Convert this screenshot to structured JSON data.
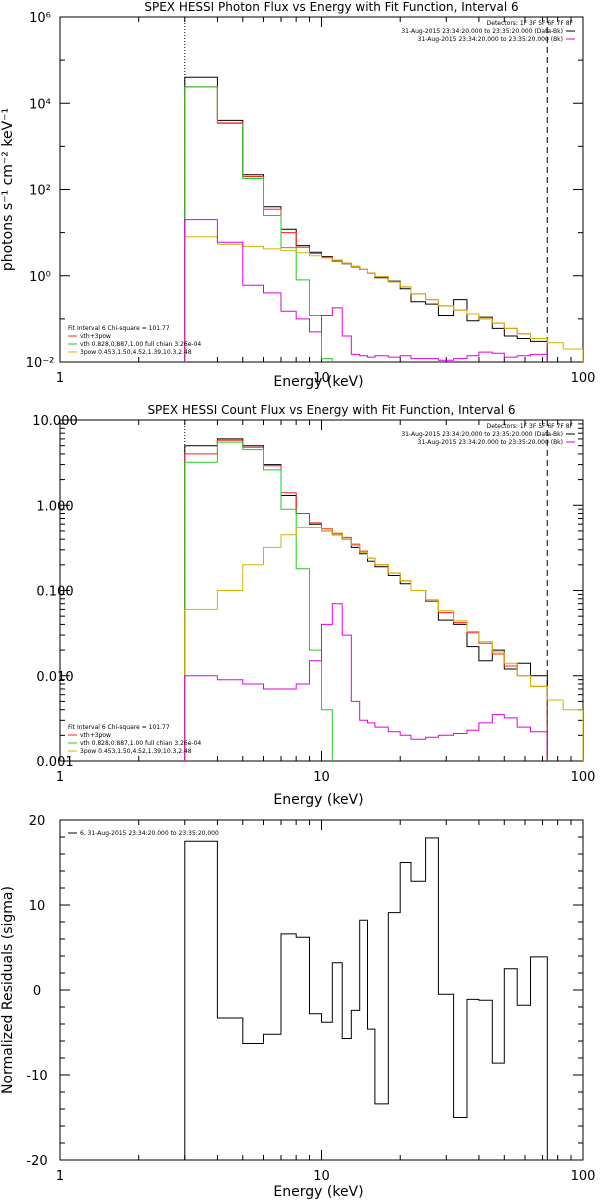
{
  "colors": {
    "total": "#000000",
    "vth": "#22cc22",
    "bpow": "#d2b400",
    "bkg": "#e000e0",
    "model": "#ff2020"
  },
  "chart_data": [
    {
      "type": "line",
      "title": "SPEX HESSI Photon Flux vs Energy with Fit Function, Interval 6",
      "xlabel": "Energy (keV)",
      "ylabel": "photons s⁻¹ cm⁻² keV⁻¹",
      "xscale": "log",
      "yscale": "log",
      "xlim": [
        1,
        100
      ],
      "ylim": [
        0.01,
        1000000
      ],
      "x_ticks": [
        "1",
        "10",
        "100"
      ],
      "y_ticks": [
        "10⁻²",
        "10⁰",
        "10²",
        "10⁴",
        "10⁶"
      ],
      "detectors": "Detectors: 1F 3F 5F 6F 7F 8F",
      "legend_right": [
        "31-Aug-2015 23:34:20.000 to 23:35:20.000 (Data-Bk)",
        "31-Aug-2015 23:34:20.000 to 23:35:20.000 (Bk)"
      ],
      "legend_left": [
        "Fit Interval 6   Chi-square = 101.77",
        "vth+3pow",
        "vth 0.828,0.887,1.00  full chian 3.26e-04",
        "3pow 0.453,1.50,4.52,1.39,10.3,2.48"
      ],
      "vlines": [
        3.0,
        73.0
      ],
      "bin_edges": [
        3.0,
        4.0,
        5.0,
        6.0,
        7.0,
        8.0,
        9.0,
        10.0,
        11.0,
        12.0,
        13.0,
        14.0,
        15.0,
        16.0,
        18.0,
        20.0,
        22.0,
        25.0,
        28.0,
        32.0,
        36.0,
        40.0,
        45.0,
        50.0,
        56.0,
        63.0,
        73.0,
        84.0,
        100.0
      ],
      "series": [
        {
          "name": "data-bk",
          "color": "total",
          "values": [
            40000,
            4000,
            220,
            40,
            12,
            5,
            3.5,
            2.8,
            2.2,
            1.9,
            1.6,
            1.4,
            1.15,
            0.9,
            0.75,
            0.5,
            0.25,
            0.22,
            0.12,
            0.28,
            0.09,
            0.11,
            0.06,
            0.04,
            0.035,
            0.03,
            null,
            null
          ]
        },
        {
          "name": "model",
          "color": "model",
          "values": [
            24000,
            3500,
            200,
            35,
            10,
            4.6,
            3.3,
            2.7,
            2.3,
            1.95,
            1.65,
            1.4,
            1.15,
            0.95,
            0.72,
            0.55,
            0.38,
            0.28,
            0.2,
            0.16,
            0.13,
            0.1,
            0.08,
            0.06,
            0.045,
            0.035,
            null,
            null
          ]
        },
        {
          "name": "vth",
          "color": "vth",
          "values": [
            24000,
            3400,
            180,
            25,
            4.5,
            0.8,
            0.12,
            0.012,
            null,
            null,
            null,
            null,
            null,
            null,
            null,
            null,
            null,
            null,
            null,
            null,
            null,
            null,
            null,
            null,
            null,
            null,
            null,
            null
          ]
        },
        {
          "name": "3pow",
          "color": "bpow",
          "values": [
            8,
            5.4,
            4.8,
            4.2,
            3.8,
            3.4,
            2.9,
            2.6,
            2.3,
            1.95,
            1.65,
            1.4,
            1.15,
            0.95,
            0.72,
            0.55,
            0.38,
            0.28,
            0.2,
            0.16,
            0.13,
            0.1,
            0.08,
            0.06,
            0.045,
            0.035,
            0.028,
            0.02
          ]
        },
        {
          "name": "bk",
          "color": "bkg",
          "values": [
            20,
            6,
            0.6,
            0.4,
            0.15,
            0.1,
            0.05,
            0.12,
            0.18,
            0.04,
            0.015,
            0.014,
            0.013,
            0.014,
            0.013,
            0.014,
            0.012,
            0.012,
            0.011,
            0.012,
            0.014,
            0.017,
            0.016,
            0.013,
            0.014,
            0.015,
            null,
            null
          ]
        }
      ]
    },
    {
      "type": "line",
      "title": "SPEX HESSI Count Flux vs Energy with Fit Function, Interval 6",
      "xlabel": "Energy (keV)",
      "ylabel": "",
      "xscale": "log",
      "yscale": "log",
      "xlim": [
        1,
        100
      ],
      "ylim": [
        0.001,
        10
      ],
      "x_ticks": [
        "1",
        "10",
        "100"
      ],
      "y_ticks": [
        "0.001",
        "0.010",
        "0.100",
        "1.000",
        "10.000"
      ],
      "detectors": "Detectors: 1F 3F 5F 6F 7F 8F",
      "legend_right": [
        "31-Aug-2015 23:34:20.000 to 23:35:20.000 (Data-Bk)",
        "31-Aug-2015 23:34:20.000 to 23:35:20.000 (Bk)"
      ],
      "legend_left": [
        "Fit Interval 6   Chi-square = 101.77",
        "vth+3pow",
        "vth 0.828,0.887,1.00  full chian 3.26e-04",
        "3pow 0.453,1.50,4.52,1.39,10.3,2.48"
      ],
      "vlines": [
        3.0,
        73.0
      ],
      "bin_edges": [
        3.0,
        4.0,
        5.0,
        6.0,
        7.0,
        8.0,
        9.0,
        10.0,
        11.0,
        12.0,
        13.0,
        14.0,
        15.0,
        16.0,
        18.0,
        20.0,
        22.0,
        25.0,
        28.0,
        32.0,
        36.0,
        40.0,
        45.0,
        50.0,
        56.0,
        63.0,
        73.0,
        84.0,
        100.0
      ],
      "series": [
        {
          "name": "data-bk",
          "color": "total",
          "values": [
            5.0,
            6.0,
            5.0,
            3.0,
            1.3,
            0.8,
            0.6,
            0.5,
            0.45,
            0.4,
            0.32,
            0.27,
            0.22,
            0.19,
            0.15,
            0.12,
            0.1,
            0.075,
            0.045,
            0.04,
            0.022,
            0.015,
            0.02,
            0.012,
            0.014,
            0.01,
            null,
            null
          ]
        },
        {
          "name": "model",
          "color": "model",
          "values": [
            4.0,
            5.8,
            4.8,
            2.9,
            1.4,
            0.8,
            0.62,
            0.53,
            0.47,
            0.42,
            0.35,
            0.29,
            0.24,
            0.2,
            0.16,
            0.13,
            0.1,
            0.075,
            0.055,
            0.042,
            0.032,
            0.024,
            0.018,
            0.013,
            0.01,
            0.0075,
            null,
            null
          ]
        },
        {
          "name": "vth",
          "color": "vth",
          "values": [
            3.2,
            5.5,
            4.5,
            2.6,
            0.9,
            0.18,
            0.02,
            0.004,
            null,
            null,
            null,
            null,
            null,
            null,
            null,
            null,
            null,
            null,
            null,
            null,
            null,
            null,
            null,
            null,
            null,
            null,
            null,
            null
          ]
        },
        {
          "name": "3pow",
          "color": "bpow",
          "values": [
            0.06,
            0.1,
            0.2,
            0.32,
            0.45,
            0.55,
            0.55,
            0.5,
            0.45,
            0.4,
            0.34,
            0.28,
            0.24,
            0.2,
            0.16,
            0.13,
            0.1,
            0.078,
            0.058,
            0.044,
            0.033,
            0.025,
            0.019,
            0.014,
            0.01,
            0.0075,
            0.0052,
            0.004
          ]
        },
        {
          "name": "bk",
          "color": "bkg",
          "values": [
            0.01,
            0.009,
            0.008,
            0.007,
            0.007,
            0.008,
            0.015,
            0.04,
            0.07,
            0.03,
            0.005,
            0.003,
            0.0028,
            0.0025,
            0.0022,
            0.002,
            0.0018,
            0.0019,
            0.002,
            0.0021,
            0.0023,
            0.0028,
            0.0035,
            0.0032,
            0.0025,
            0.0022,
            null,
            null
          ]
        }
      ]
    },
    {
      "type": "line",
      "title": "",
      "xlabel": "Energy (keV)",
      "ylabel": "Normalized Residuals (sigma)",
      "xscale": "log",
      "yscale": "linear",
      "xlim": [
        1,
        100
      ],
      "ylim": [
        -20,
        20
      ],
      "x_ticks": [
        "1",
        "10",
        "100"
      ],
      "y_ticks": [
        "-20",
        "-10",
        "0",
        "10",
        "20"
      ],
      "legend_left": [
        "6, 31-Aug-2015 23:34:20.000 to 23:35:20.000"
      ],
      "bin_edges": [
        3.0,
        4.0,
        5.0,
        6.0,
        7.0,
        8.0,
        9.0,
        10.0,
        11.0,
        12.0,
        13.0,
        14.0,
        15.0,
        16.0,
        18.0,
        20.0,
        22.0,
        25.0,
        28.0,
        32.0,
        36.0,
        40.0,
        45.0,
        50.0,
        56.0,
        63.0,
        73.0
      ],
      "series": [
        {
          "name": "residuals",
          "color": "total",
          "values": [
            17.5,
            -3.3,
            -6.3,
            -5.2,
            6.6,
            6.2,
            -2.8,
            -3.8,
            3.2,
            -5.7,
            -2.4,
            8.2,
            -4.6,
            -13.4,
            9.1,
            15.0,
            12.8,
            17.9,
            -0.5,
            -15.0,
            -1.1,
            -1.2,
            -8.6,
            2.5,
            -1.8,
            3.9
          ]
        }
      ]
    }
  ]
}
